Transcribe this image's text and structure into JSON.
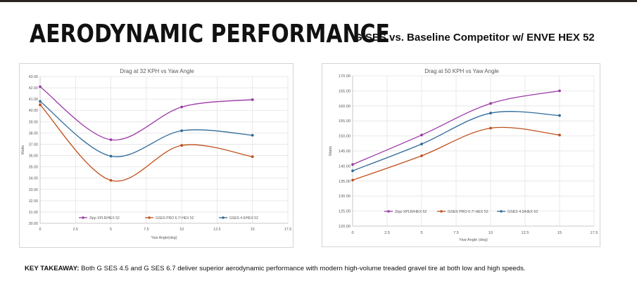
{
  "header": {
    "title": "AERODYNAMIC PERFORMANCE",
    "subtitle": "G SES vs. Baseline Competitor w/ ENVE HEX 52"
  },
  "takeaway": {
    "label": "KEY TAKEAWAY:",
    "text": " Both G SES 4.5 and G SES 6.7 deliver superior aerodynamic performance with modern high-volume treaded gravel tire at both low and high speeds."
  },
  "chart_data": [
    {
      "type": "line",
      "title": "Drag at 32 KPH vs Yaw Angle",
      "xlabel": "Yaw Angle(deg)",
      "ylabel": "Watts",
      "xlim": [
        0,
        17.5
      ],
      "ylim": [
        30,
        43
      ],
      "xticks": [
        0,
        2.5,
        5,
        7.5,
        10,
        12.5,
        15,
        17.5
      ],
      "xtick_labels": [
        "0",
        "2.5",
        "5",
        "7.5",
        "10",
        "12.5",
        "15",
        "17.5"
      ],
      "yticks": [
        30,
        31,
        32,
        33,
        34,
        35,
        36,
        37,
        38,
        39,
        40,
        41,
        42,
        43
      ],
      "ytick_labels": [
        "30.00",
        "31.00",
        "32.00",
        "33.00",
        "34.00",
        "35.00",
        "36.00",
        "37.00",
        "38.00",
        "39.00",
        "40.00",
        "41.00",
        "42.00",
        "43.00"
      ],
      "grid": true,
      "legend_position": "bottom",
      "x": [
        0,
        5,
        10,
        15
      ],
      "series": [
        {
          "name": "Zipp XPLR/HEX 52",
          "color": "#9b3aa6",
          "values": [
            42.1,
            37.4,
            40.3,
            40.95
          ]
        },
        {
          "name": "GSES PRO 6.7/ HEX 52",
          "color": "#c0501c",
          "values": [
            40.5,
            33.8,
            36.9,
            35.9
          ]
        },
        {
          "name": "GSES 4.5/HEX 52",
          "color": "#2e6a99",
          "values": [
            40.8,
            35.95,
            38.2,
            37.8
          ]
        }
      ]
    },
    {
      "type": "line",
      "title": "Drag at 50 KPH vs Yaw Angle",
      "xlabel": "Yaw Angle (deg)",
      "ylabel": "Watts",
      "xlim": [
        0,
        17.5
      ],
      "ylim": [
        120,
        170
      ],
      "xticks": [
        0,
        2.5,
        5,
        7.5,
        10,
        12.5,
        15,
        17.5
      ],
      "xtick_labels": [
        "0",
        "2.5",
        "5",
        "7.5",
        "10",
        "12.5",
        "15",
        "17.5"
      ],
      "yticks": [
        120,
        125,
        130,
        135,
        140,
        145,
        150,
        155,
        160,
        165,
        170
      ],
      "ytick_labels": [
        "120.00",
        "125.00",
        "130.00",
        "135.00",
        "140.00",
        "145.00",
        "150.00",
        "155.00",
        "160.00",
        "165.00",
        "170.00"
      ],
      "grid": true,
      "legend_position": "bottom",
      "x": [
        0,
        5,
        10,
        15
      ],
      "series": [
        {
          "name": "Zipp XPLR/HEX 52",
          "color": "#9b3aa6",
          "values": [
            140.5,
            150.3,
            160.8,
            165.0
          ]
        },
        {
          "name": "GSES PRO 6.7/ HEX 52",
          "color": "#c0501c",
          "values": [
            135.3,
            143.4,
            152.6,
            150.3
          ]
        },
        {
          "name": "GSES 4.5/HEX 52",
          "color": "#2e6a99",
          "values": [
            138.4,
            147.3,
            157.6,
            156.8
          ]
        }
      ]
    }
  ]
}
